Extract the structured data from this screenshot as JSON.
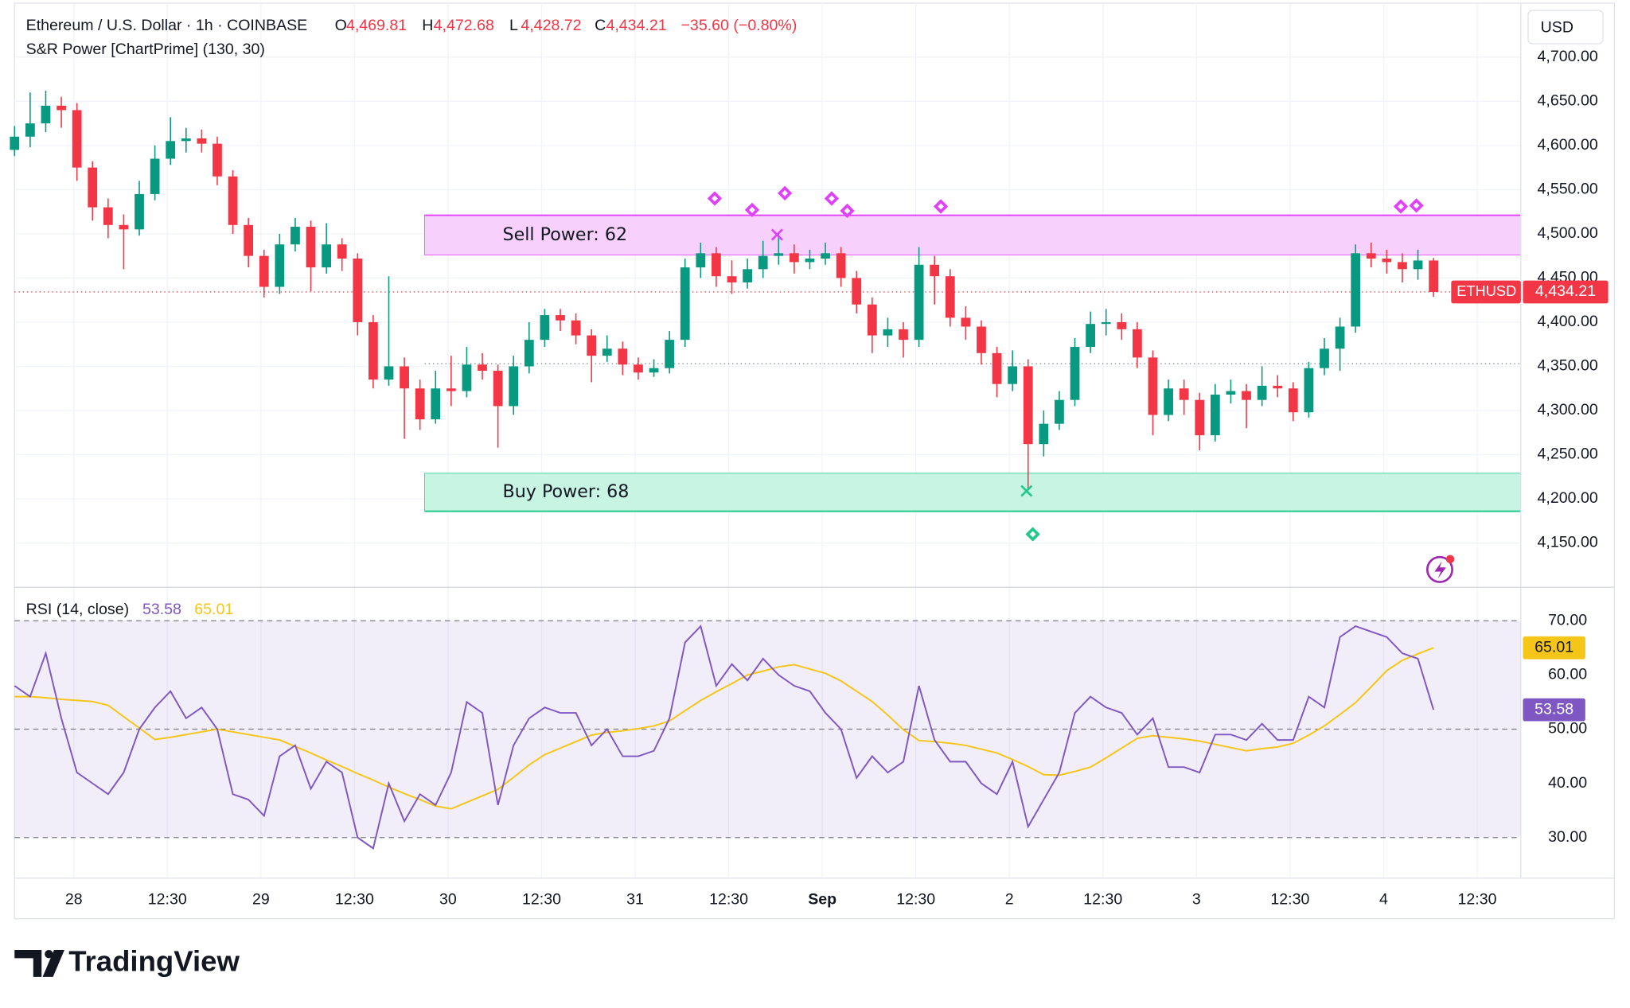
{
  "header": {
    "symbol": "Ethereum / U.S. Dollar · 1h · COINBASE",
    "o": "O",
    "open": "4,469.81",
    "h": "H",
    "high": "4,472.68",
    "l": "L",
    "low": "4,428.72",
    "c": "C",
    "close": "4,434.21",
    "change": "−35.60 (−0.80%)",
    "indicator": "S&R Power [ChartPrime] (130, 30)",
    "currency": "USD"
  },
  "brand": "TradingView",
  "chart_data": [
    {
      "type": "candlestick",
      "up_color": "#089981",
      "down_color": "#f23645",
      "symbol_badge": "ETHUSD",
      "xlim": [
        0,
        96.6
      ],
      "ylim": [
        4100,
        4761
      ],
      "grid": true,
      "yticks": [
        {
          "value": 4150,
          "label": "4,150.00"
        },
        {
          "value": 4200,
          "label": "4,200.00"
        },
        {
          "value": 4250,
          "label": "4,250.00"
        },
        {
          "value": 4300,
          "label": "4,300.00"
        },
        {
          "value": 4350,
          "label": "4,350.00"
        },
        {
          "value": 4400,
          "label": "4,400.00"
        },
        {
          "value": 4450,
          "label": "4,450.00"
        },
        {
          "value": 4500,
          "label": "4,500.00"
        },
        {
          "value": 4550,
          "label": "4,550.00"
        },
        {
          "value": 4600,
          "label": "4,600.00"
        },
        {
          "value": 4650,
          "label": "4,650.00"
        },
        {
          "value": 4700,
          "label": "4,700.00"
        }
      ],
      "xticks": [
        {
          "value": 3.8,
          "label": "28"
        },
        {
          "value": 9.8,
          "label": "12:30"
        },
        {
          "value": 15.8,
          "label": "29"
        },
        {
          "value": 21.8,
          "label": "12:30"
        },
        {
          "value": 27.8,
          "label": "30"
        },
        {
          "value": 33.8,
          "label": "12:30"
        },
        {
          "value": 39.8,
          "label": "31"
        },
        {
          "value": 45.8,
          "label": "12:30"
        },
        {
          "value": 51.8,
          "label": "Sep"
        },
        {
          "value": 57.8,
          "label": "12:30"
        },
        {
          "value": 63.8,
          "label": "2"
        },
        {
          "value": 69.8,
          "label": "12:30"
        },
        {
          "value": 75.8,
          "label": "3"
        },
        {
          "value": 81.8,
          "label": "12:30"
        },
        {
          "value": 87.8,
          "label": "4"
        },
        {
          "value": 93.8,
          "label": "12:30"
        }
      ],
      "candles": [
        [
          4595,
          4622,
          4588,
          4610
        ],
        [
          4610,
          4660,
          4598,
          4625
        ],
        [
          4625,
          4662,
          4615,
          4645
        ],
        [
          4645,
          4655,
          4620,
          4640
        ],
        [
          4640,
          4648,
          4560,
          4575
        ],
        [
          4575,
          4582,
          4515,
          4530
        ],
        [
          4530,
          4540,
          4495,
          4510
        ],
        [
          4510,
          4522,
          4460,
          4505
        ],
        [
          4505,
          4560,
          4498,
          4545
        ],
        [
          4545,
          4600,
          4538,
          4585
        ],
        [
          4585,
          4632,
          4578,
          4605
        ],
        [
          4605,
          4620,
          4592,
          4608
        ],
        [
          4608,
          4618,
          4592,
          4602
        ],
        [
          4602,
          4610,
          4555,
          4565
        ],
        [
          4565,
          4572,
          4500,
          4510
        ],
        [
          4510,
          4518,
          4462,
          4475
        ],
        [
          4475,
          4482,
          4428,
          4440
        ],
        [
          4440,
          4500,
          4432,
          4488
        ],
        [
          4488,
          4518,
          4480,
          4508
        ],
        [
          4508,
          4515,
          4435,
          4462
        ],
        [
          4462,
          4512,
          4455,
          4488
        ],
        [
          4488,
          4495,
          4458,
          4472
        ],
        [
          4472,
          4478,
          4385,
          4400
        ],
        [
          4400,
          4408,
          4325,
          4335
        ],
        [
          4335,
          4452,
          4328,
          4350
        ],
        [
          4350,
          4360,
          4268,
          4325
        ],
        [
          4325,
          4335,
          4278,
          4290
        ],
        [
          4290,
          4345,
          4285,
          4325
        ],
        [
          4325,
          4362,
          4305,
          4322
        ],
        [
          4322,
          4372,
          4315,
          4352
        ],
        [
          4352,
          4365,
          4335,
          4345
        ],
        [
          4345,
          4352,
          4258,
          4305
        ],
        [
          4305,
          4362,
          4295,
          4350
        ],
        [
          4350,
          4400,
          4342,
          4380
        ],
        [
          4380,
          4415,
          4372,
          4408
        ],
        [
          4408,
          4415,
          4390,
          4402
        ],
        [
          4402,
          4410,
          4375,
          4385
        ],
        [
          4385,
          4392,
          4332,
          4362
        ],
        [
          4362,
          4385,
          4355,
          4370
        ],
        [
          4370,
          4378,
          4340,
          4352
        ],
        [
          4352,
          4360,
          4335,
          4343
        ],
        [
          4343,
          4358,
          4338,
          4348
        ],
        [
          4348,
          4390,
          4342,
          4380
        ],
        [
          4380,
          4472,
          4372,
          4462
        ],
        [
          4462,
          4490,
          4450,
          4478
        ],
        [
          4478,
          4485,
          4440,
          4452
        ],
        [
          4452,
          4470,
          4432,
          4445
        ],
        [
          4445,
          4472,
          4438,
          4460
        ],
        [
          4460,
          4492,
          4450,
          4475
        ],
        [
          4475,
          4500,
          4465,
          4478
        ],
        [
          4478,
          4488,
          4455,
          4468
        ],
        [
          4468,
          4482,
          4460,
          4472
        ],
        [
          4472,
          4490,
          4465,
          4478
        ],
        [
          4478,
          4485,
          4440,
          4450
        ],
        [
          4450,
          4458,
          4410,
          4420
        ],
        [
          4420,
          4428,
          4365,
          4385
        ],
        [
          4385,
          4405,
          4372,
          4392
        ],
        [
          4392,
          4400,
          4360,
          4380
        ],
        [
          4380,
          4485,
          4372,
          4465
        ],
        [
          4465,
          4475,
          4420,
          4452
        ],
        [
          4452,
          4460,
          4395,
          4405
        ],
        [
          4405,
          4418,
          4380,
          4395
        ],
        [
          4395,
          4402,
          4352,
          4365
        ],
        [
          4365,
          4372,
          4315,
          4330
        ],
        [
          4330,
          4368,
          4322,
          4350
        ],
        [
          4350,
          4358,
          4210,
          4262
        ],
        [
          4262,
          4300,
          4248,
          4285
        ],
        [
          4285,
          4322,
          4278,
          4312
        ],
        [
          4312,
          4382,
          4305,
          4372
        ],
        [
          4372,
          4412,
          4365,
          4398
        ],
        [
          4398,
          4415,
          4385,
          4400
        ],
        [
          4400,
          4410,
          4380,
          4392
        ],
        [
          4392,
          4400,
          4348,
          4360
        ],
        [
          4360,
          4368,
          4272,
          4295
        ],
        [
          4295,
          4335,
          4288,
          4325
        ],
        [
          4325,
          4335,
          4295,
          4312
        ],
        [
          4312,
          4320,
          4255,
          4272
        ],
        [
          4272,
          4330,
          4265,
          4318
        ],
        [
          4318,
          4335,
          4308,
          4322
        ],
        [
          4322,
          4330,
          4280,
          4312
        ],
        [
          4312,
          4350,
          4305,
          4328
        ],
        [
          4328,
          4340,
          4315,
          4325
        ],
        [
          4325,
          4332,
          4288,
          4298
        ],
        [
          4298,
          4355,
          4292,
          4348
        ],
        [
          4348,
          4382,
          4340,
          4370
        ],
        [
          4370,
          4405,
          4345,
          4395
        ],
        [
          4395,
          4488,
          4388,
          4478
        ],
        [
          4478,
          4490,
          4462,
          4472
        ],
        [
          4472,
          4482,
          4455,
          4468
        ],
        [
          4468,
          4478,
          4445,
          4460
        ],
        [
          4460,
          4482,
          4448,
          4469.81
        ],
        [
          4469.81,
          4472.68,
          4428.72,
          4434.21
        ]
      ],
      "zones": [
        {
          "label": "Sell Power: 62",
          "from": 4476,
          "to": 4521,
          "x0": 26.3,
          "fill": "#f7d1fb",
          "edge": "#e040fb"
        },
        {
          "label": "Buy Power: 68",
          "from": 4186,
          "to": 4229,
          "x0": 26.3,
          "fill": "#c8f5e3",
          "edge": "#22c98a"
        }
      ],
      "mid_level": 4353,
      "sell_signals": {
        "color": "#e040fb",
        "points": [
          [
            44.9,
            4540
          ],
          [
            47.3,
            4527
          ],
          [
            49.4,
            4546
          ],
          [
            52.4,
            4540
          ],
          [
            53.4,
            4526
          ],
          [
            59.4,
            4531
          ],
          [
            88.9,
            4531
          ],
          [
            89.9,
            4532
          ]
        ]
      },
      "buy_signals": {
        "color": "#22c98a",
        "points": [
          [
            65.3,
            4160
          ]
        ]
      },
      "crosses": [
        {
          "x": 48.9,
          "y": 4499,
          "color": "#e040fb"
        },
        {
          "x": 64.9,
          "y": 4209,
          "color": "#22c98a"
        }
      ]
    },
    {
      "type": "line",
      "title": "RSI (14, close)",
      "xlim": [
        0,
        96.6
      ],
      "ylim": [
        22.5,
        76
      ],
      "yticks": [
        {
          "value": 30,
          "label": "30.00"
        },
        {
          "value": 40,
          "label": "40.00"
        },
        {
          "value": 50,
          "label": "50.00"
        },
        {
          "value": 60,
          "label": "60.00"
        },
        {
          "value": 70,
          "label": "70.00"
        }
      ],
      "band": [
        30,
        70
      ],
      "levels": [
        70,
        50,
        30
      ],
      "series": [
        {
          "color": "#7e57c2",
          "values": [
            58,
            56,
            64,
            52,
            42,
            40,
            38,
            42,
            50,
            54,
            57,
            52,
            54,
            50,
            38,
            37,
            34,
            45,
            47,
            39,
            44,
            42,
            30,
            28,
            40,
            33,
            38,
            36,
            42,
            55,
            53,
            36,
            47,
            52,
            54,
            53,
            53,
            47,
            50,
            45,
            45,
            46,
            52,
            66,
            69,
            58,
            62,
            59,
            63,
            60,
            58,
            57,
            53,
            50,
            41,
            45,
            42,
            44,
            58,
            48,
            44,
            44,
            40,
            38,
            44,
            32,
            37,
            42,
            53,
            56,
            54,
            53,
            49,
            52,
            43,
            43,
            42,
            49,
            49,
            48,
            51,
            48,
            48,
            56,
            54,
            67,
            69,
            68,
            67,
            64,
            63,
            53.58
          ]
        },
        {
          "color": "#f5c518",
          "values": [
            56,
            56,
            55.8,
            55.5,
            55.3,
            55.1,
            54.4,
            52.3,
            50.2,
            48.1,
            48.5,
            49,
            49.5,
            50,
            49.5,
            49,
            48.5,
            48,
            46.8,
            45.6,
            44.3,
            43.1,
            41.8,
            40.6,
            39.3,
            38.1,
            37,
            35.8,
            35.3,
            36.5,
            37.7,
            38.9,
            41.1,
            43.4,
            45.3,
            46.5,
            47.7,
            48.9,
            49.4,
            49.7,
            50.1,
            50.6,
            51.5,
            53.4,
            55.3,
            56.9,
            58.4,
            60,
            60.7,
            61.5,
            61.9,
            61.1,
            60.3,
            58.9,
            57,
            55.1,
            52.6,
            49.9,
            47.9,
            47.7,
            47.4,
            47,
            46.3,
            45.6,
            44.4,
            43.1,
            41.6,
            41.5,
            42.2,
            43,
            44.7,
            46.5,
            48.3,
            48.8,
            48.5,
            48.2,
            47.8,
            47.2,
            46.6,
            46,
            46.4,
            46.7,
            47.4,
            48.9,
            50.6,
            52.7,
            54.9,
            57.8,
            60.8,
            62.7,
            63.9,
            65.01
          ]
        }
      ]
    }
  ]
}
